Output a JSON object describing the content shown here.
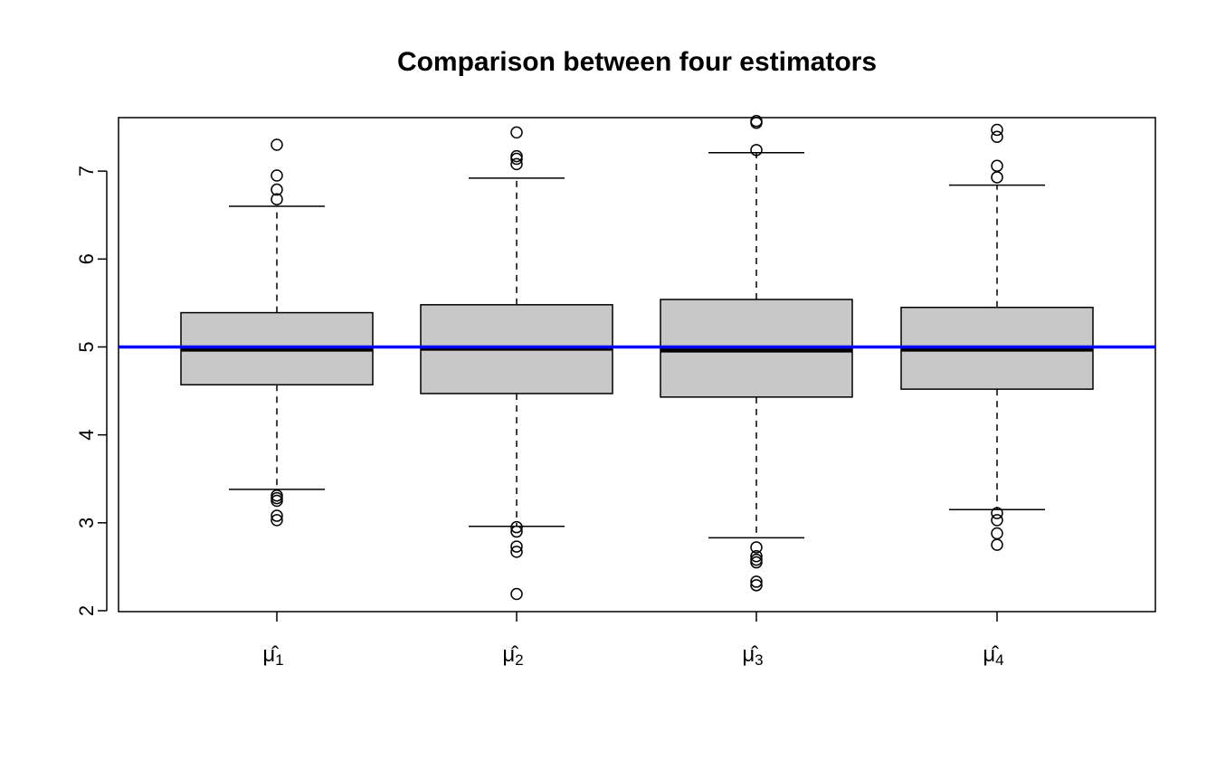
{
  "chart_data": {
    "type": "boxplot",
    "title": "Comparison between four estimators",
    "xlabel": "",
    "ylabel": "",
    "ylim": [
      2,
      7.8
    ],
    "y_ticks": [
      2,
      3,
      4,
      5,
      6,
      7
    ],
    "y_tick_labels": [
      "2",
      "3",
      "4",
      "5",
      "6",
      "7"
    ],
    "categories": [
      {
        "base": "μ̂",
        "sub": "1"
      },
      {
        "base": "μ̂",
        "sub": "2"
      },
      {
        "base": "μ̂",
        "sub": "3"
      },
      {
        "base": "μ̂",
        "sub": "4"
      }
    ],
    "boxes": [
      {
        "whisker_low": 3.38,
        "q1": 4.57,
        "median": 4.97,
        "q3": 5.39,
        "whisker_high": 6.6,
        "outliers": [
          7.3,
          6.95,
          6.79,
          6.68,
          3.31,
          3.28,
          3.25,
          3.08,
          3.03
        ]
      },
      {
        "whisker_low": 2.96,
        "q1": 4.47,
        "median": 4.98,
        "q3": 5.48,
        "whisker_high": 6.92,
        "outliers": [
          7.44,
          7.17,
          7.14,
          7.08,
          2.95,
          2.9,
          2.73,
          2.67,
          2.19
        ]
      },
      {
        "whisker_low": 2.83,
        "q1": 4.43,
        "median": 4.96,
        "q3": 5.54,
        "whisker_high": 7.21,
        "outliers": [
          7.57,
          7.55,
          7.24,
          2.72,
          2.62,
          2.58,
          2.55,
          2.33,
          2.29
        ]
      },
      {
        "whisker_low": 3.15,
        "q1": 4.52,
        "median": 4.97,
        "q3": 5.45,
        "whisker_high": 6.84,
        "outliers": [
          7.47,
          7.39,
          7.06,
          6.93,
          3.11,
          3.03,
          2.88,
          2.75
        ]
      }
    ],
    "reference_line": {
      "y": 5,
      "color": "#0000ff"
    },
    "box_fill": "#c8c8c8",
    "grid": false,
    "legend": "none"
  }
}
